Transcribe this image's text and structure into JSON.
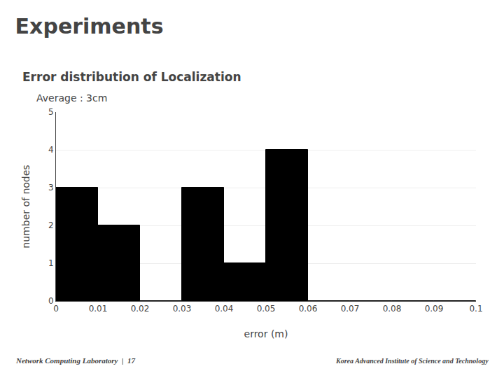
{
  "chart_data": {
    "type": "histogram",
    "title": "Experiments",
    "annotations": [
      "Error distribution of Localization",
      "Average : 3cm",
      "Network Computing Laboratory  |  17",
      "Korea Advanced Institute of Science and Technology"
    ],
    "bins": [
      0,
      0.01,
      0.02,
      0.03,
      0.04,
      0.05,
      0.06,
      0.07,
      0.08,
      0.09,
      0.1
    ],
    "values": [
      3,
      2,
      0,
      3,
      1,
      4,
      0,
      0,
      0,
      0
    ],
    "color": "#000000",
    "xlabel": "error (m)",
    "ylabel": "number of nodes",
    "xlim": [
      0,
      0.1
    ],
    "ylim": [
      0,
      5
    ],
    "xticks": [
      0,
      0.01,
      0.02,
      0.03,
      0.04,
      0.05,
      0.06,
      0.07,
      0.08,
      0.09,
      0.1
    ],
    "yticks": [
      0,
      1,
      2,
      3,
      4,
      5
    ],
    "grid": true
  }
}
